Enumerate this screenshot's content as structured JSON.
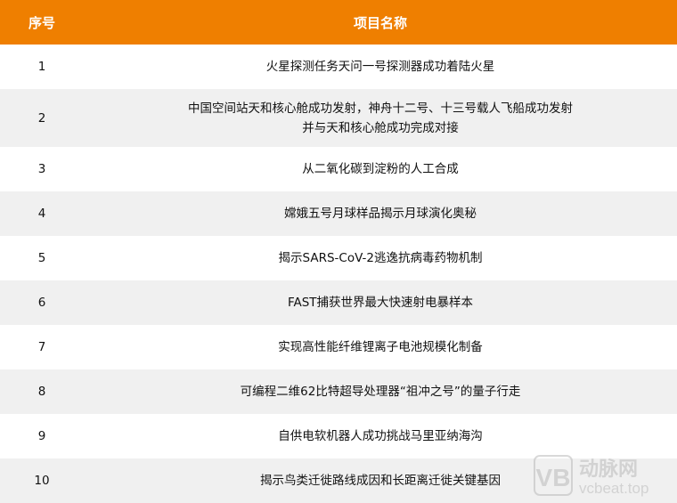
{
  "table": {
    "headers": [
      "序号",
      "项目名称"
    ],
    "rows": [
      {
        "no": "1",
        "name": [
          "火星探测任务天问一号探测器成功着陆火星"
        ]
      },
      {
        "no": "2",
        "name": [
          "中国空间站天和核心舱成功发射，神舟十二号、十三号载人飞船成功发射",
          "并与天和核心舱成功完成对接"
        ]
      },
      {
        "no": "3",
        "name": [
          "从二氧化碳到淀粉的人工合成"
        ]
      },
      {
        "no": "4",
        "name": [
          "嫦娥五号月球样品揭示月球演化奥秘"
        ]
      },
      {
        "no": "5",
        "name": [
          "揭示SARS-CoV-2逃逸抗病毒药物机制"
        ]
      },
      {
        "no": "6",
        "name": [
          "FAST捕获世界最大快速射电暴样本"
        ]
      },
      {
        "no": "7",
        "name": [
          "实现高性能纤维锂离子电池规模化制备"
        ]
      },
      {
        "no": "8",
        "name": [
          "可编程二维62比特超导处理器“祖冲之号”的量子行走"
        ]
      },
      {
        "no": "9",
        "name": [
          "自供电软机器人成功挑战马里亚纳海沟"
        ]
      },
      {
        "no": "10",
        "name": [
          "揭示鸟类迁徙路线成因和长距离迁徙关键基因"
        ]
      }
    ]
  },
  "watermark": {
    "logo": "VB",
    "brand": "动脉网",
    "site": "vcbeat.top"
  },
  "colors": {
    "header_bg": "#ef7f00",
    "stripe": "#f0f0f0"
  }
}
